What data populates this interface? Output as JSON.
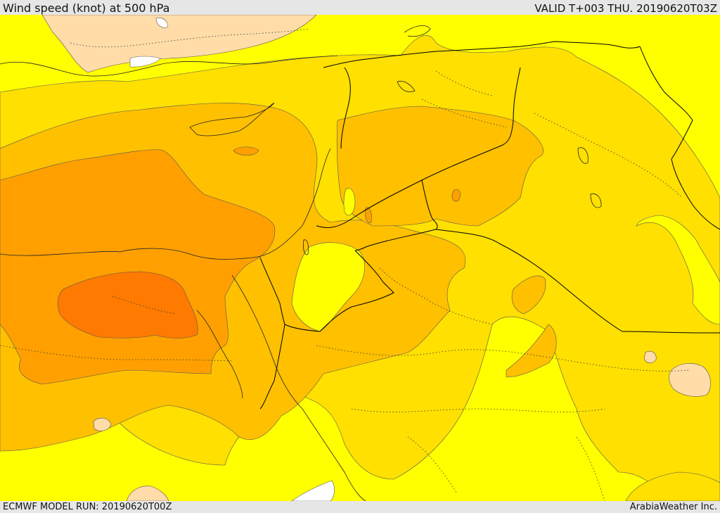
{
  "header": {
    "title": "Wind speed (knot) at 500 hPa",
    "valid_time": "VALID T+003 THU. 20190620T03Z"
  },
  "footer": {
    "model_run": "ECMWF MODEL RUN: 20190620T00Z",
    "credit": "ArabiaWeather Inc."
  },
  "colors": {
    "band_yellow": "#ffff00",
    "band_light_gold": "#ffe000",
    "band_gold": "#ffc000",
    "band_orange": "#ffa000",
    "band_dark_orange": "#ff7a00",
    "band_peach": "#ffdca8",
    "band_white": "#ffffff",
    "boundary": "#000000"
  }
}
